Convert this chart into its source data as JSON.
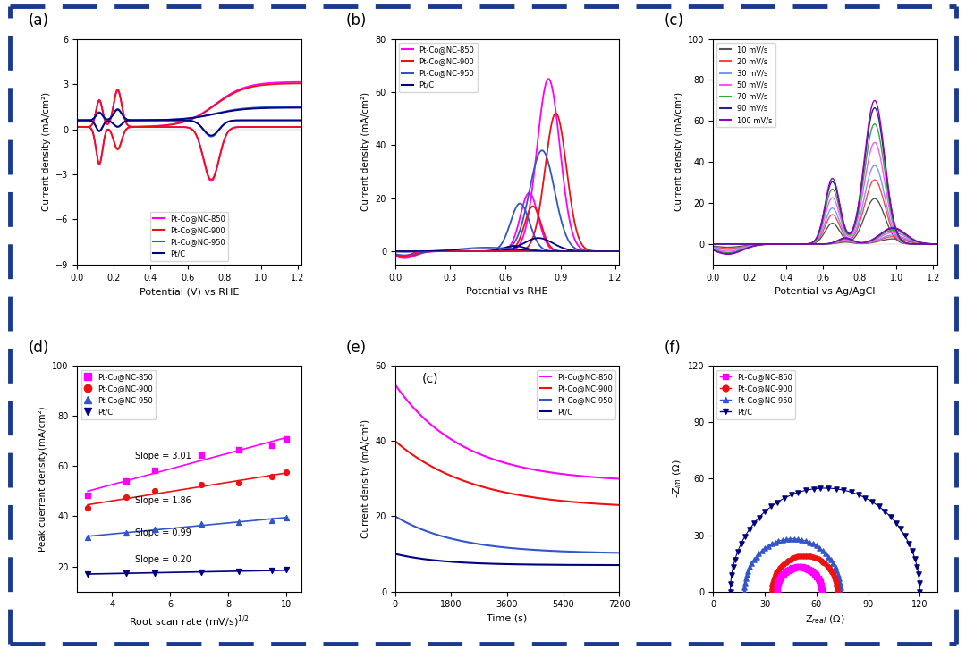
{
  "fig_bg": "#ffffff",
  "border_color": "#1a3a8f",
  "colors": {
    "magenta": "#FF00FF",
    "red": "#EE1111",
    "blue_med": "#3355CC",
    "blue_dark": "#000080",
    "black": "#111111"
  },
  "scan_rate_colors": {
    "10": "#555555",
    "20": "#FF4444",
    "30": "#7799FF",
    "50": "#FF55FF",
    "70": "#33AA33",
    "90": "#222299",
    "100": "#9900BB"
  },
  "legend_labels_abdf": [
    "Pt-Co@NC-850",
    "Pt-Co@NC-900",
    "Pt-Co@NC-950",
    "Pt/C"
  ],
  "legend_labels_c": [
    "10 mV/s",
    "20 mV/s",
    "30 mV/s",
    "50 mV/s",
    "70 mV/s",
    "90 mV/s",
    "100 mV/s"
  ],
  "slopes": [
    3.01,
    1.86,
    0.99,
    0.2
  ],
  "slope_labels": [
    "Slope = 3.01",
    "Slope = 1.86",
    "Slope = 0.99",
    "Slope = 0.20"
  ]
}
